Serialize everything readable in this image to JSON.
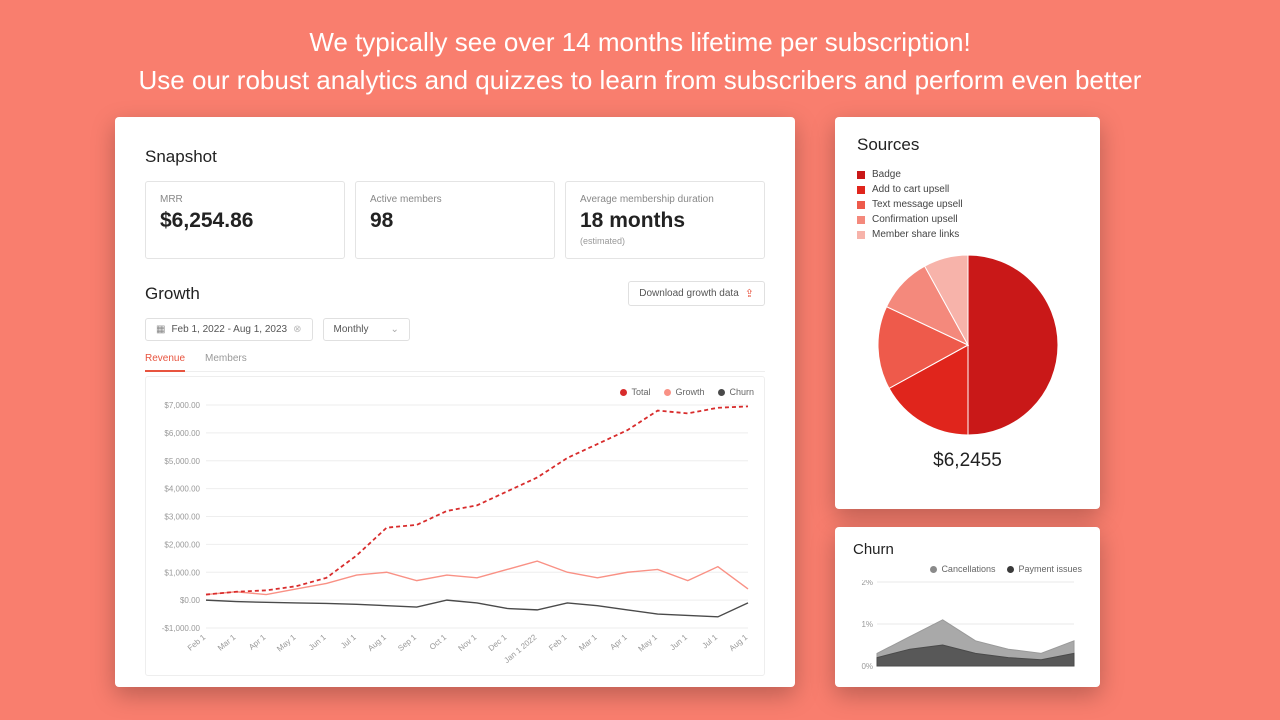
{
  "page_bg": "#f97e6e",
  "headline": {
    "line1": "We typically see over 14 months lifetime per subscription!",
    "line2": "Use our robust analytics and quizzes to learn from subscribers and perform even better",
    "color": "#ffffff",
    "fontsize": 26
  },
  "snapshot": {
    "title": "Snapshot",
    "cards": [
      {
        "label": "MRR",
        "value": "$6,254.86"
      },
      {
        "label": "Active members",
        "value": "98"
      },
      {
        "label": "Average membership duration",
        "value": "18 months",
        "sub": "(estimated)"
      }
    ]
  },
  "growth": {
    "title": "Growth",
    "download_label": "Download growth data",
    "date_range": "Feb 1, 2022 - Aug 1, 2023",
    "interval": "Monthly",
    "tabs": [
      "Revenue",
      "Members"
    ],
    "active_tab": 0,
    "legend": [
      {
        "label": "Total",
        "color": "#d82c2c",
        "dash": true
      },
      {
        "label": "Growth",
        "color": "#f99185"
      },
      {
        "label": "Churn",
        "color": "#4a4a4a"
      }
    ],
    "chart": {
      "type": "line",
      "ylim": [
        -1000,
        7000
      ],
      "ytick_step": 1000,
      "ylabels": [
        "$7,000.00",
        "$6,000.00",
        "$5,000.00",
        "$4,000.00",
        "$3,000.00",
        "$2,000.00",
        "$1,000.00",
        "$0.00",
        "-$1,000.00"
      ],
      "xticks": [
        "Feb 1",
        "Mar 1",
        "Apr 1",
        "May 1",
        "Jun 1",
        "Jul 1",
        "Aug 1",
        "Sep 1",
        "Oct 1",
        "Nov 1",
        "Dec 1",
        "Jan 1 2022",
        "Feb 1",
        "Mar 1",
        "Apr 1",
        "May 1",
        "Jun 1",
        "Jul 1",
        "Aug 1"
      ],
      "series": {
        "total": [
          200,
          300,
          350,
          500,
          800,
          1600,
          2600,
          2700,
          3200,
          3400,
          3900,
          4400,
          5100,
          5600,
          6100,
          6800,
          6700,
          6900,
          6950
        ],
        "growth": [
          200,
          300,
          200,
          400,
          600,
          900,
          1000,
          700,
          900,
          800,
          1100,
          1400,
          1000,
          800,
          1000,
          1100,
          700,
          1200,
          400
        ],
        "churn": [
          0,
          -50,
          -80,
          -100,
          -120,
          -150,
          -200,
          -250,
          0,
          -100,
          -300,
          -350,
          -100,
          -200,
          -350,
          -500,
          -550,
          -600,
          -100
        ]
      },
      "grid_color": "#eeeeee",
      "axis_fontsize": 8,
      "plot_bg": "#ffffff"
    }
  },
  "sources": {
    "title": "Sources",
    "legend": [
      {
        "label": "Badge",
        "color": "#c91818"
      },
      {
        "label": "Add to cart upsell",
        "color": "#e0251c"
      },
      {
        "label": "Text message upsell",
        "color": "#ee5a4b"
      },
      {
        "label": "Confirmation upsell",
        "color": "#f4897c"
      },
      {
        "label": "Member share links",
        "color": "#f7b3aa"
      }
    ],
    "pie": {
      "type": "pie",
      "slices": [
        {
          "label": "Badge",
          "pct": 50,
          "color": "#c91818"
        },
        {
          "label": "Add to cart upsell",
          "pct": 17,
          "color": "#e0251c"
        },
        {
          "label": "Text message upsell",
          "pct": 15,
          "color": "#ee5a4b"
        },
        {
          "label": "Confirmation upsell",
          "pct": 10,
          "color": "#f4897c"
        },
        {
          "label": "Member share links",
          "pct": 8,
          "color": "#f7b3aa"
        }
      ],
      "radius": 90
    },
    "amount": "$6,2455"
  },
  "churn": {
    "title": "Churn",
    "legend": [
      {
        "label": "Cancellations",
        "color": "#8a8a8a"
      },
      {
        "label": "Payment issues",
        "color": "#3a3a3a"
      }
    ],
    "chart": {
      "type": "area",
      "ylim": [
        0,
        2
      ],
      "ylabels": [
        "2%",
        "1%",
        "0%"
      ],
      "series": {
        "cancellations": [
          0.3,
          0.7,
          1.1,
          0.6,
          0.4,
          0.3,
          0.6
        ],
        "payment": [
          0.2,
          0.4,
          0.5,
          0.3,
          0.2,
          0.15,
          0.3
        ]
      },
      "color_top": "#9a9a9a",
      "color_bot": "#4a4a4a",
      "grid_color": "#e8e8e8"
    }
  },
  "accent": "#e8543f"
}
